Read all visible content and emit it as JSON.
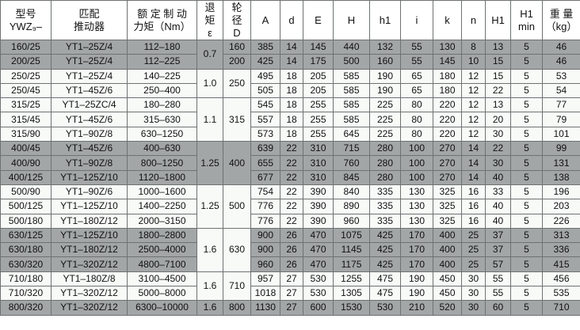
{
  "headers": [
    {
      "l1": "型号",
      "l2": "YWZ₉–"
    },
    {
      "l1": "匹配",
      "l2": "推动器"
    },
    {
      "l1": "额 定 制 动",
      "l2": "力矩（Nm）"
    },
    {
      "l1": "退",
      "l2": "矩",
      "l3": "ε"
    },
    {
      "l1": "轮",
      "l2": "径",
      "l3": "D"
    },
    {
      "l1": "A"
    },
    {
      "l1": "d"
    },
    {
      "l1": "E"
    },
    {
      "l1": "H"
    },
    {
      "l1": "h1"
    },
    {
      "l1": "i"
    },
    {
      "l1": "k"
    },
    {
      "l1": "n"
    },
    {
      "l1": "H1"
    },
    {
      "l1": "H1",
      "l2": "min"
    },
    {
      "l1": "重 量",
      "l2": "（kg）"
    }
  ],
  "rows": [
    {
      "shade": "gray",
      "model": "160/25",
      "actuator": "YT1–25Z/4",
      "torque": "112–180",
      "eps": "0.7",
      "eps_span": 2,
      "eps_shade": "gray",
      "D": "160",
      "D_span": 1,
      "D_shade": "gray",
      "vals": [
        "385",
        "14",
        "145",
        "440",
        "132",
        "55",
        "130",
        "8",
        "13",
        "5",
        "46"
      ]
    },
    {
      "shade": "gray",
      "model": "200/25",
      "actuator": "YT1–25Z/4",
      "torque": "112–225",
      "D": "200",
      "D_span": 1,
      "D_shade": "gray",
      "vals": [
        "425",
        "14",
        "175",
        "500",
        "160",
        "55",
        "145",
        "10",
        "15",
        "5",
        "46"
      ]
    },
    {
      "shade": "light",
      "model": "250/25",
      "actuator": "YT1–25Z/4",
      "torque": "140–225",
      "eps": "1.0",
      "eps_span": 2,
      "eps_shade": "light",
      "D": "250",
      "D_span": 2,
      "D_shade": "light",
      "vals": [
        "495",
        "18",
        "205",
        "585",
        "190",
        "65",
        "180",
        "12",
        "15",
        "5",
        "53"
      ]
    },
    {
      "shade": "light",
      "model": "250/45",
      "actuator": "YT1–45Z/6",
      "torque": "250–400",
      "vals": [
        "505",
        "18",
        "205",
        "585",
        "190",
        "65",
        "180",
        "12",
        "22",
        "5",
        "54"
      ]
    },
    {
      "shade": "light",
      "model": "315/25",
      "actuator": "YT1–25ZC/4",
      "torque": "180–280",
      "eps": "1.1",
      "eps_span": 3,
      "eps_shade": "light",
      "D": "315",
      "D_span": 3,
      "D_shade": "light",
      "vals": [
        "545",
        "18",
        "255",
        "585",
        "225",
        "80",
        "220",
        "12",
        "13",
        "5",
        "77"
      ]
    },
    {
      "shade": "light",
      "model": "315/45",
      "actuator": "YT1–45Z/6",
      "torque": "315–630",
      "vals": [
        "557",
        "18",
        "255",
        "585",
        "225",
        "80",
        "220",
        "12",
        "20",
        "5",
        "79"
      ]
    },
    {
      "shade": "light",
      "model": "315/90",
      "actuator": "YT1–90Z/8",
      "torque": "630–1250",
      "vals": [
        "573",
        "18",
        "255",
        "645",
        "225",
        "80",
        "220",
        "12",
        "30",
        "5",
        "101"
      ]
    },
    {
      "shade": "gray",
      "model": "400/45",
      "actuator": "YT1–45Z/6",
      "torque": "400–630",
      "eps": "1.25",
      "eps_span": 3,
      "eps_shade": "gray",
      "D": "400",
      "D_span": 3,
      "D_shade": "gray",
      "vals": [
        "639",
        "22",
        "310",
        "715",
        "280",
        "100",
        "270",
        "14",
        "22",
        "5",
        "99"
      ]
    },
    {
      "shade": "gray",
      "model": "400/90",
      "actuator": "YT1–90Z/8",
      "torque": "800–1250",
      "vals": [
        "655",
        "22",
        "310",
        "760",
        "280",
        "100",
        "270",
        "14",
        "30",
        "5",
        "131"
      ]
    },
    {
      "shade": "gray",
      "model": "400/125",
      "actuator": "YT1–125Z/10",
      "torque": "1120–1800",
      "vals": [
        "677",
        "22",
        "310",
        "845",
        "280",
        "100",
        "270",
        "14",
        "40",
        "5",
        "138"
      ]
    },
    {
      "shade": "light",
      "model": "500/90",
      "actuator": "YT1–90Z/6",
      "torque": "1000–1600",
      "eps": "1.25",
      "eps_span": 3,
      "eps_shade": "light",
      "D": "500",
      "D_span": 3,
      "D_shade": "light",
      "vals": [
        "754",
        "22",
        "390",
        "840",
        "335",
        "130",
        "325",
        "16",
        "33",
        "5",
        "196"
      ]
    },
    {
      "shade": "light",
      "model": "500/125",
      "actuator": "YT1–125Z/10",
      "torque": "1400–2250",
      "vals": [
        "776",
        "22",
        "390",
        "890",
        "335",
        "130",
        "325",
        "16",
        "40",
        "5",
        "203"
      ]
    },
    {
      "shade": "light",
      "model": "500/180",
      "actuator": "YT1–180Z/12",
      "torque": "2000–3150",
      "vals": [
        "776",
        "22",
        "390",
        "960",
        "335",
        "130",
        "325",
        "16",
        "40",
        "5",
        "226"
      ]
    },
    {
      "shade": "gray",
      "model": "630/125",
      "actuator": "YT1–125Z/10",
      "torque": "1800–2800",
      "eps": "1.6",
      "eps_span": 3,
      "eps_shade": "light",
      "D": "630",
      "D_span": 3,
      "D_shade": "light",
      "vals": [
        "900",
        "26",
        "470",
        "1075",
        "425",
        "170",
        "400",
        "25",
        "37",
        "5",
        "313"
      ]
    },
    {
      "shade": "gray",
      "model": "630/180",
      "actuator": "YT1–180Z/12",
      "torque": "2500–4000",
      "vals": [
        "900",
        "26",
        "470",
        "1145",
        "425",
        "170",
        "400",
        "25",
        "37",
        "5",
        "336"
      ]
    },
    {
      "shade": "gray",
      "model": "630/320",
      "actuator": "YT1–320Z/12",
      "torque": "4800–7100",
      "vals": [
        "960",
        "26",
        "470",
        "1175",
        "425",
        "170",
        "400",
        "25",
        "57",
        "5",
        "415"
      ]
    },
    {
      "shade": "light",
      "model": "710/180",
      "actuator": "YT1–180Z/8",
      "torque": "3100–4500",
      "eps": "1.6",
      "eps_span": 2,
      "eps_shade": "light",
      "D": "710",
      "D_span": 2,
      "D_shade": "light",
      "vals": [
        "957",
        "27",
        "530",
        "1255",
        "475",
        "190",
        "450",
        "30",
        "55",
        "5",
        "456"
      ]
    },
    {
      "shade": "light",
      "model": "710/320",
      "actuator": "YT1–320Z/12",
      "torque": "5000–8000",
      "vals": [
        "1018",
        "27",
        "530",
        "1305",
        "475",
        "190",
        "450",
        "30",
        "55",
        "5",
        "535"
      ]
    },
    {
      "shade": "gray",
      "model": "800/320",
      "actuator": "YT1–320Z/12",
      "torque": "6300–10000",
      "eps": "1.6",
      "eps_span": 1,
      "eps_shade": "gray",
      "D": "800",
      "D_span": 1,
      "D_shade": "gray",
      "vals": [
        "1130",
        "27",
        "600",
        "1530",
        "530",
        "210",
        "520",
        "30",
        "60",
        "5",
        "710"
      ]
    }
  ]
}
